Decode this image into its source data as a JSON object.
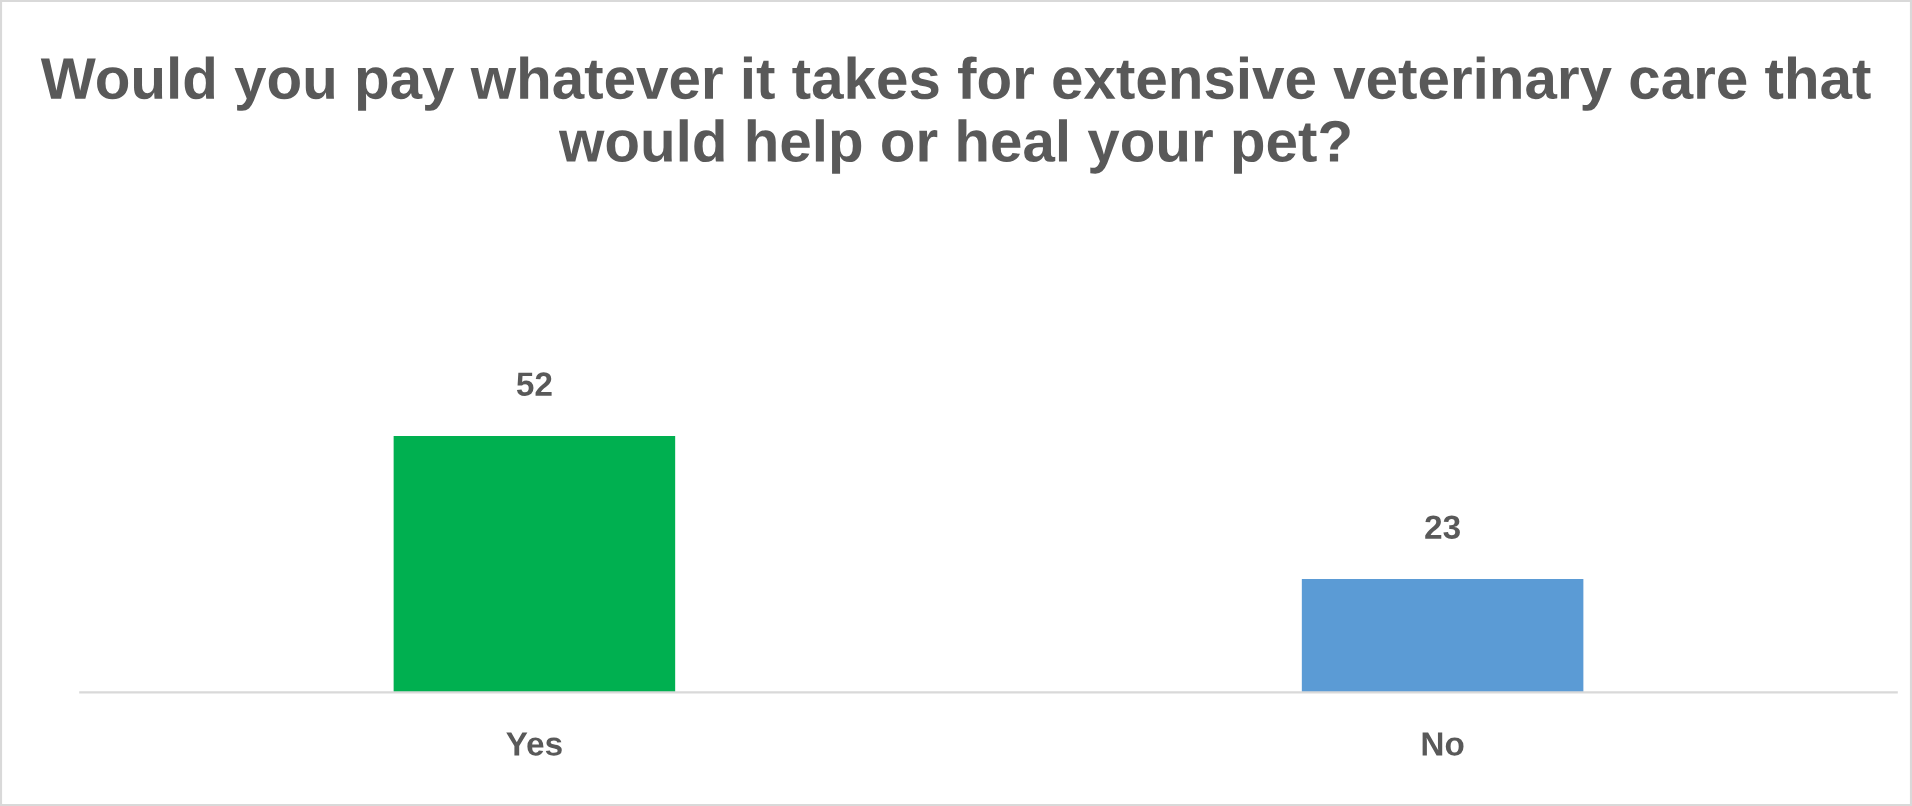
{
  "chart_data": {
    "type": "bar",
    "title": "Would you pay whatever it takes for extensive veterinary care that would help or heal your pet?",
    "categories": [
      "Yes",
      "No"
    ],
    "values": [
      52,
      23
    ],
    "colors": [
      "#00b050",
      "#5b9bd5"
    ],
    "data_labels": true,
    "grid": false,
    "legend": false
  }
}
